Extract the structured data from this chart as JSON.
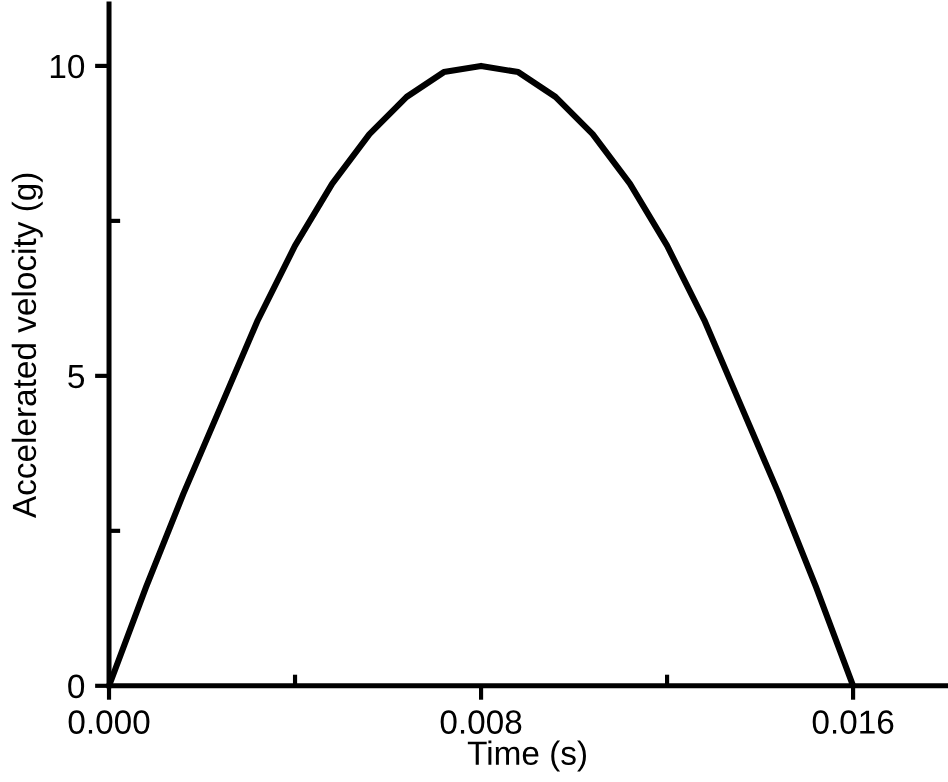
{
  "chart_data": {
    "type": "line",
    "xlabel": "Time (s)",
    "ylabel": "Accelerated velocity (g)",
    "x": [
      0,
      0.0008,
      0.0016,
      0.0024,
      0.0032,
      0.004,
      0.0048,
      0.0056,
      0.0064,
      0.0072,
      0.008,
      0.0088,
      0.0096,
      0.0104,
      0.0112,
      0.012,
      0.0128,
      0.0136,
      0.0144,
      0.0152,
      0.016
    ],
    "series": [
      {
        "color": "#000000",
        "values": [
          0,
          1.6,
          3.1,
          4.5,
          5.9,
          7.1,
          8.1,
          8.9,
          9.5,
          9.9,
          10,
          9.9,
          9.5,
          8.9,
          8.1,
          7.1,
          5.9,
          4.5,
          3.1,
          1.6,
          0
        ]
      }
    ],
    "xlim": [
      0,
      0.018
    ],
    "ylim": [
      0,
      11
    ],
    "xticks": [
      {
        "value": 0,
        "label": "0.000"
      },
      {
        "value": 0.004,
        "label": null
      },
      {
        "value": 0.008,
        "label": "0.008"
      },
      {
        "value": 0.012,
        "label": null
      },
      {
        "value": 0.016,
        "label": "0.016"
      }
    ],
    "yticks": [
      0,
      {
        "value": 2.5,
        "label": null
      },
      5,
      {
        "value": 7.5,
        "label": null
      },
      10
    ],
    "grid": false,
    "legend": false,
    "marker": "none",
    "line_style": "solid"
  }
}
